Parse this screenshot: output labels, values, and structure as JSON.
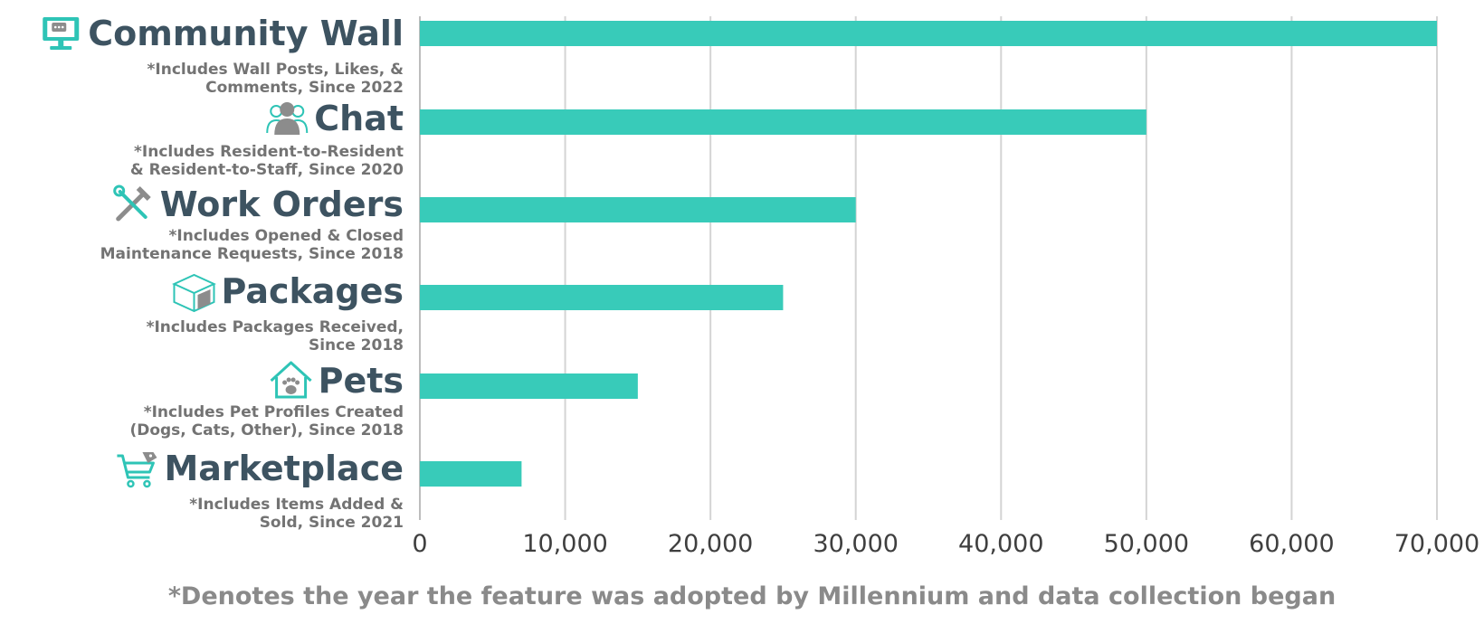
{
  "chart_data": {
    "type": "bar",
    "orientation": "horizontal",
    "categories": [
      "Community Wall",
      "Chat",
      "Work Orders",
      "Packages",
      "Pets",
      "Marketplace"
    ],
    "notes": [
      [
        "*Includes Wall Posts, Likes, &",
        "Comments, Since 2022"
      ],
      [
        "*Includes Resident-to-Resident",
        "& Resident-to-Staff, Since 2020"
      ],
      [
        "*Includes Opened & Closed",
        "Maintenance Requests, Since 2018"
      ],
      [
        "*Includes Packages Received,",
        "Since 2018"
      ],
      [
        "*Includes Pet Profiles Created",
        "(Dogs, Cats, Other), Since 2018"
      ],
      [
        "*Includes Items Added &",
        "Sold, Since 2021"
      ]
    ],
    "icons": [
      "monitor-chat-icon",
      "people-icon",
      "tools-icon",
      "package-icon",
      "pet-house-icon",
      "cart-icon"
    ],
    "values": [
      70000,
      50000,
      30000,
      25000,
      15000,
      7000
    ],
    "xlim": [
      0,
      70000
    ],
    "ticks": [
      0,
      10000,
      20000,
      30000,
      40000,
      50000,
      60000,
      70000
    ],
    "tick_labels": [
      "0",
      "10,000",
      "20,000",
      "30,000",
      "40,000",
      "50,000",
      "60,000",
      "70,000"
    ],
    "grid": true,
    "footnote": "*Denotes the year the feature was adopted by Millennium and data collection began",
    "colors": {
      "bar": "#38cbb9",
      "category_title": "#3d5361",
      "note": "#737373",
      "grid": "#d4d4d4",
      "icon_teal": "#2ec4b6",
      "icon_gray": "#8c8c8c"
    }
  }
}
